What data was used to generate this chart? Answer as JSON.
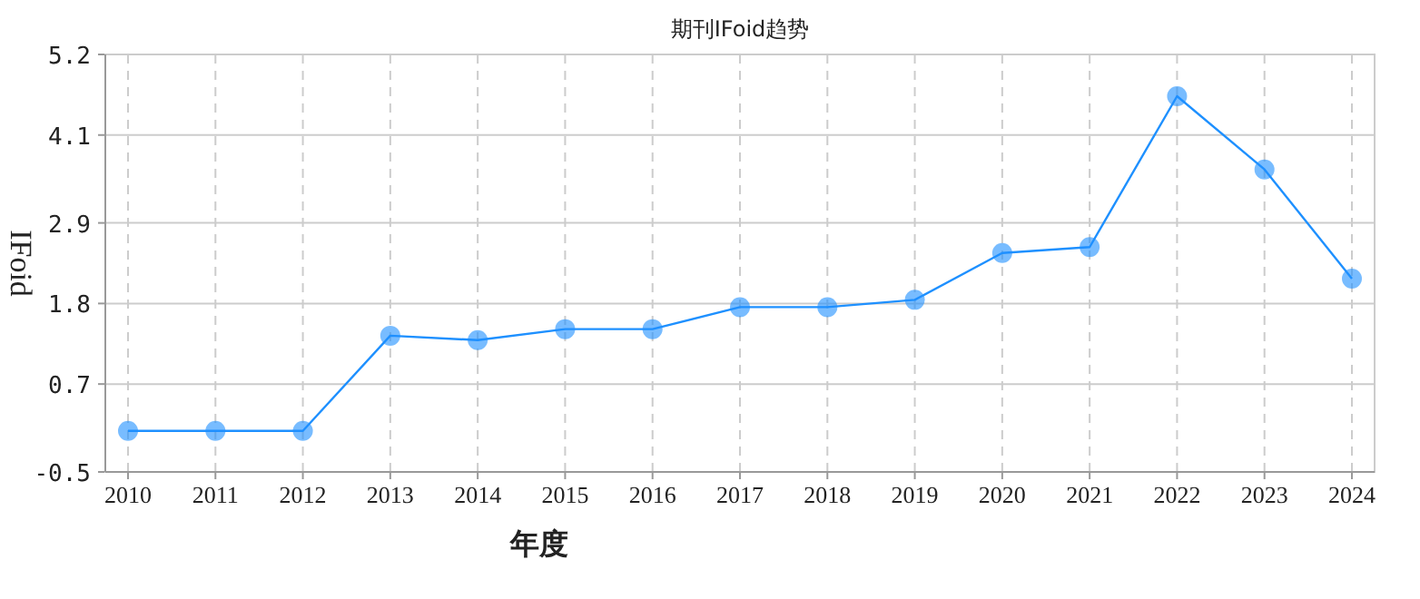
{
  "chart_data": {
    "type": "line",
    "title": "期刊IFoid趋势",
    "xlabel": "年度",
    "ylabel": "IFoid",
    "categories": [
      "2010",
      "2011",
      "2012",
      "2013",
      "2014",
      "2015",
      "2016",
      "2017",
      "2018",
      "2019",
      "2020",
      "2021",
      "2022",
      "2023",
      "2024"
    ],
    "series": [
      {
        "color": "#1e90ff",
        "values": [
          0.06,
          0.06,
          0.06,
          1.36,
          1.3,
          1.45,
          1.45,
          1.75,
          1.75,
          1.85,
          2.49,
          2.57,
          4.63,
          3.63,
          2.14
        ]
      }
    ],
    "ylim": [
      -0.5,
      5.2
    ],
    "yticks": [
      -0.5,
      0.7,
      1.8,
      2.9,
      4.1,
      5.2
    ],
    "grid": true,
    "marker": "circle",
    "line_style": "solid"
  }
}
